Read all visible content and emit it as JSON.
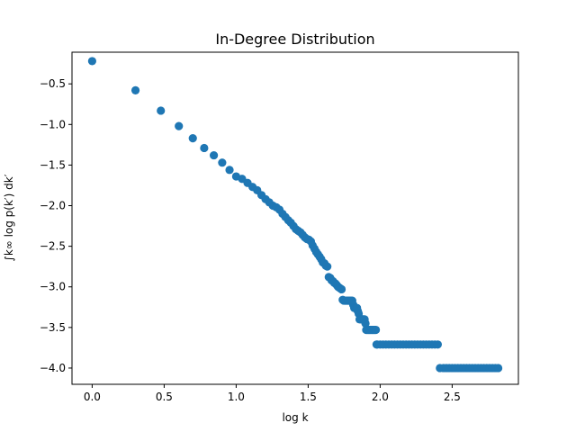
{
  "chart_data": {
    "type": "scatter",
    "title": "In-Degree Distribution",
    "xlabel": "log k",
    "ylabel": "∫k∞ log p(k′) dk′",
    "xlim": [
      -0.14,
      2.96
    ],
    "ylim": [
      -4.2,
      -0.11
    ],
    "xticks": [
      0.0,
      0.5,
      1.0,
      1.5,
      2.0,
      2.5
    ],
    "xtick_labels": [
      "0.0",
      "0.5",
      "1.0",
      "1.5",
      "2.0",
      "2.5"
    ],
    "yticks": [
      -0.5,
      -1.0,
      -1.5,
      -2.0,
      -2.5,
      -3.0,
      -3.5,
      -4.0
    ],
    "ytick_labels": [
      "−0.5",
      "−1.0",
      "−1.5",
      "−2.0",
      "−2.5",
      "−3.0",
      "−3.5",
      "−4.0"
    ],
    "grid": false,
    "marker_color": "#1f77b4",
    "points": [
      [
        0.0,
        -0.22
      ],
      [
        0.301,
        -0.58
      ],
      [
        0.477,
        -0.83
      ],
      [
        0.602,
        -1.02
      ],
      [
        0.699,
        -1.17
      ],
      [
        0.778,
        -1.29
      ],
      [
        0.845,
        -1.38
      ],
      [
        0.903,
        -1.47
      ],
      [
        0.954,
        -1.56
      ],
      [
        1.0,
        -1.64
      ],
      [
        1.041,
        -1.67
      ],
      [
        1.079,
        -1.72
      ],
      [
        1.114,
        -1.77
      ],
      [
        1.146,
        -1.81
      ],
      [
        1.176,
        -1.87
      ],
      [
        1.204,
        -1.92
      ],
      [
        1.23,
        -1.96
      ],
      [
        1.255,
        -2.0
      ],
      [
        1.279,
        -2.02
      ],
      [
        1.301,
        -2.05
      ],
      [
        1.322,
        -2.1
      ],
      [
        1.342,
        -2.14
      ],
      [
        1.362,
        -2.18
      ],
      [
        1.38,
        -2.21
      ],
      [
        1.398,
        -2.25
      ],
      [
        1.415,
        -2.29
      ],
      [
        1.431,
        -2.31
      ],
      [
        1.447,
        -2.33
      ],
      [
        1.462,
        -2.36
      ],
      [
        1.477,
        -2.39
      ],
      [
        1.491,
        -2.41
      ],
      [
        1.505,
        -2.42
      ],
      [
        1.519,
        -2.44
      ],
      [
        1.531,
        -2.49
      ],
      [
        1.544,
        -2.53
      ],
      [
        1.556,
        -2.57
      ],
      [
        1.568,
        -2.6
      ],
      [
        1.58,
        -2.63
      ],
      [
        1.591,
        -2.66
      ],
      [
        1.602,
        -2.7
      ],
      [
        1.613,
        -2.71
      ],
      [
        1.623,
        -2.74
      ],
      [
        1.633,
        -2.75
      ],
      [
        1.643,
        -2.88
      ],
      [
        1.653,
        -2.89
      ],
      [
        1.663,
        -2.92
      ],
      [
        1.672,
        -2.93
      ],
      [
        1.681,
        -2.95
      ],
      [
        1.69,
        -2.96
      ],
      [
        1.699,
        -2.98
      ],
      [
        1.708,
        -3.0
      ],
      [
        1.716,
        -3.01
      ],
      [
        1.724,
        -3.02
      ],
      [
        1.732,
        -3.03
      ],
      [
        1.74,
        -3.16
      ],
      [
        1.748,
        -3.17
      ],
      [
        1.756,
        -3.17
      ],
      [
        1.763,
        -3.17
      ],
      [
        1.771,
        -3.17
      ],
      [
        1.778,
        -3.17
      ],
      [
        1.785,
        -3.17
      ],
      [
        1.792,
        -3.17
      ],
      [
        1.799,
        -3.17
      ],
      [
        1.806,
        -3.17
      ],
      [
        1.813,
        -3.22
      ],
      [
        1.82,
        -3.26
      ],
      [
        1.826,
        -3.26
      ],
      [
        1.833,
        -3.26
      ],
      [
        1.839,
        -3.26
      ],
      [
        1.845,
        -3.3
      ],
      [
        1.851,
        -3.33
      ],
      [
        1.857,
        -3.4
      ],
      [
        1.863,
        -3.4
      ],
      [
        1.869,
        -3.4
      ],
      [
        1.875,
        -3.4
      ],
      [
        1.881,
        -3.4
      ],
      [
        1.886,
        -3.4
      ],
      [
        1.892,
        -3.4
      ],
      [
        1.898,
        -3.45
      ],
      [
        1.903,
        -3.53
      ],
      [
        1.908,
        -3.53
      ],
      [
        1.914,
        -3.53
      ],
      [
        1.919,
        -3.53
      ],
      [
        1.924,
        -3.53
      ],
      [
        1.929,
        -3.53
      ],
      [
        1.934,
        -3.53
      ],
      [
        1.94,
        -3.53
      ],
      [
        1.945,
        -3.53
      ],
      [
        1.949,
        -3.53
      ],
      [
        1.954,
        -3.53
      ],
      [
        1.96,
        -3.53
      ],
      [
        1.965,
        -3.53
      ],
      [
        1.97,
        -3.53
      ],
      [
        1.975,
        -3.71
      ],
      [
        1.98,
        -3.71
      ],
      [
        2.0,
        -3.71
      ],
      [
        2.02,
        -3.71
      ],
      [
        2.04,
        -3.71
      ],
      [
        2.06,
        -3.71
      ],
      [
        2.08,
        -3.71
      ],
      [
        2.1,
        -3.71
      ],
      [
        2.12,
        -3.71
      ],
      [
        2.14,
        -3.71
      ],
      [
        2.16,
        -3.71
      ],
      [
        2.18,
        -3.71
      ],
      [
        2.2,
        -3.71
      ],
      [
        2.22,
        -3.71
      ],
      [
        2.24,
        -3.71
      ],
      [
        2.26,
        -3.71
      ],
      [
        2.28,
        -3.71
      ],
      [
        2.3,
        -3.71
      ],
      [
        2.32,
        -3.71
      ],
      [
        2.34,
        -3.71
      ],
      [
        2.36,
        -3.71
      ],
      [
        2.38,
        -3.71
      ],
      [
        2.4,
        -3.71
      ],
      [
        2.415,
        -4.0
      ],
      [
        2.44,
        -4.0
      ],
      [
        2.46,
        -4.0
      ],
      [
        2.48,
        -4.0
      ],
      [
        2.5,
        -4.0
      ],
      [
        2.52,
        -4.0
      ],
      [
        2.54,
        -4.0
      ],
      [
        2.56,
        -4.0
      ],
      [
        2.58,
        -4.0
      ],
      [
        2.6,
        -4.0
      ],
      [
        2.62,
        -4.0
      ],
      [
        2.64,
        -4.0
      ],
      [
        2.66,
        -4.0
      ],
      [
        2.68,
        -4.0
      ],
      [
        2.7,
        -4.0
      ],
      [
        2.72,
        -4.0
      ],
      [
        2.74,
        -4.0
      ],
      [
        2.76,
        -4.0
      ],
      [
        2.78,
        -4.0
      ],
      [
        2.8,
        -4.0
      ],
      [
        2.82,
        -4.0
      ]
    ]
  }
}
